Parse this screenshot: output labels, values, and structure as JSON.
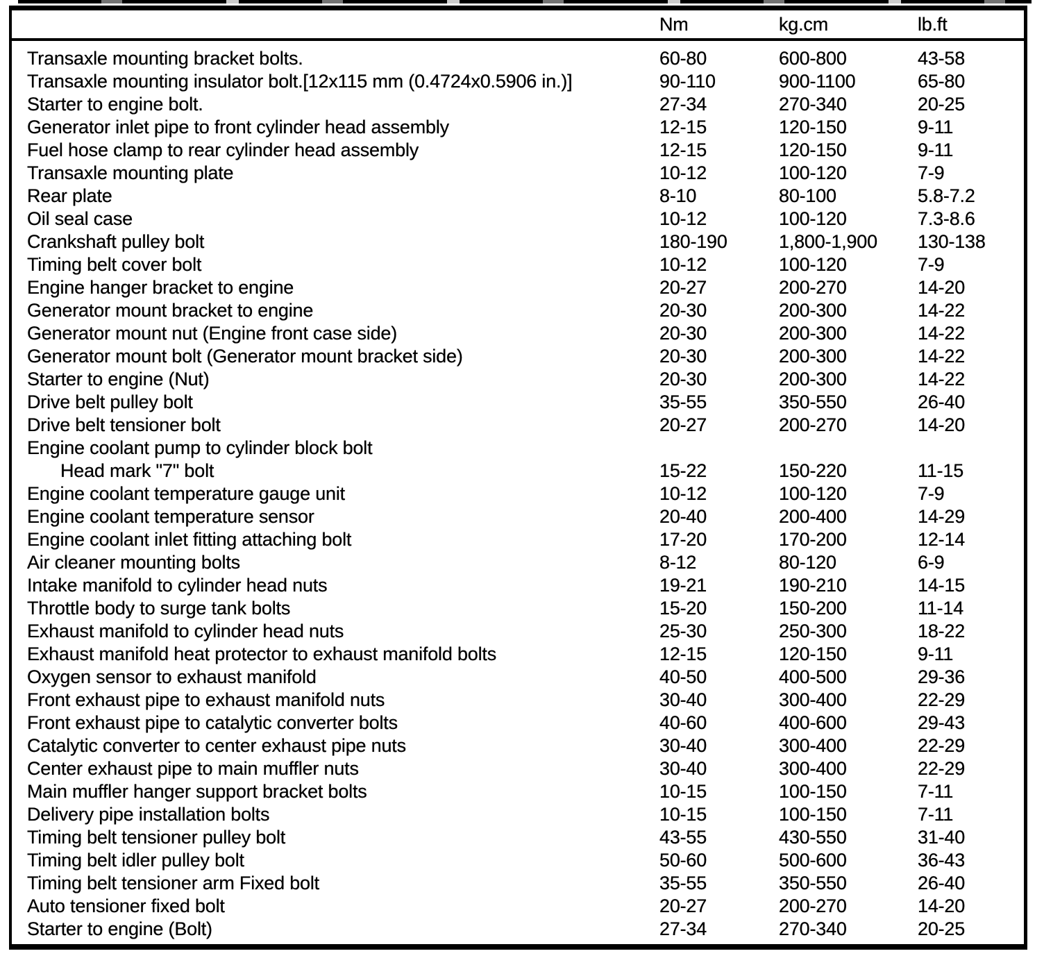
{
  "table": {
    "headers": {
      "nm": "Nm",
      "kgcm": "kg.cm",
      "lbft": "lb.ft"
    },
    "rows": [
      {
        "item": "Transaxle mounting bracket bolts.",
        "nm": "60-80",
        "kgcm": "600-800",
        "lbft": "43-58",
        "indent": false
      },
      {
        "item": "Transaxle mounting insulator bolt.[12x115 mm (0.4724x0.5906 in.)]",
        "nm": "90-110",
        "kgcm": "900-1100",
        "lbft": "65-80",
        "indent": false
      },
      {
        "item": "Starter to engine bolt.",
        "nm": "27-34",
        "kgcm": "270-340",
        "lbft": "20-25",
        "indent": false
      },
      {
        "item": "Generator inlet pipe to front cylinder head assembly",
        "nm": "12-15",
        "kgcm": "120-150",
        "lbft": "9-11",
        "indent": false
      },
      {
        "item": "Fuel hose clamp to rear cylinder head assembly",
        "nm": "12-15",
        "kgcm": "120-150",
        "lbft": "9-11",
        "indent": false
      },
      {
        "item": "Transaxle mounting plate",
        "nm": "10-12",
        "kgcm": "100-120",
        "lbft": "7-9",
        "indent": false
      },
      {
        "item": "Rear plate",
        "nm": "8-10",
        "kgcm": "80-100",
        "lbft": "5.8-7.2",
        "indent": false
      },
      {
        "item": "Oil seal case",
        "nm": "10-12",
        "kgcm": "100-120",
        "lbft": "7.3-8.6",
        "indent": false
      },
      {
        "item": "Crankshaft pulley bolt",
        "nm": "180-190",
        "kgcm": "1,800-1,900",
        "lbft": "130-138",
        "indent": false
      },
      {
        "item": "Timing belt cover bolt",
        "nm": "10-12",
        "kgcm": "100-120",
        "lbft": "7-9",
        "indent": false
      },
      {
        "item": "Engine hanger bracket to engine",
        "nm": "20-27",
        "kgcm": "200-270",
        "lbft": "14-20",
        "indent": false
      },
      {
        "item": "Generator mount bracket to engine",
        "nm": "20-30",
        "kgcm": "200-300",
        "lbft": "14-22",
        "indent": false
      },
      {
        "item": "Generator mount nut (Engine front case side)",
        "nm": "20-30",
        "kgcm": "200-300",
        "lbft": "14-22",
        "indent": false
      },
      {
        "item": "Generator mount bolt (Generator mount bracket side)",
        "nm": "20-30",
        "kgcm": "200-300",
        "lbft": "14-22",
        "indent": false
      },
      {
        "item": "Starter to engine (Nut)",
        "nm": "20-30",
        "kgcm": "200-300",
        "lbft": "14-22",
        "indent": false
      },
      {
        "item": "Drive belt pulley bolt",
        "nm": "35-55",
        "kgcm": "350-550",
        "lbft": "26-40",
        "indent": false
      },
      {
        "item": "Drive belt tensioner bolt",
        "nm": "20-27",
        "kgcm": "200-270",
        "lbft": "14-20",
        "indent": false
      },
      {
        "item": "Engine coolant pump to cylinder block bolt",
        "nm": "",
        "kgcm": "",
        "lbft": "",
        "indent": false
      },
      {
        "item": "Head mark \"7\" bolt",
        "nm": "15-22",
        "kgcm": "150-220",
        "lbft": "11-15",
        "indent": true
      },
      {
        "item": "Engine coolant temperature gauge unit",
        "nm": "10-12",
        "kgcm": "100-120",
        "lbft": "7-9",
        "indent": false
      },
      {
        "item": "Engine coolant temperature sensor",
        "nm": "20-40",
        "kgcm": "200-400",
        "lbft": "14-29",
        "indent": false
      },
      {
        "item": "Engine coolant inlet fitting attaching bolt",
        "nm": "17-20",
        "kgcm": "170-200",
        "lbft": "12-14",
        "indent": false
      },
      {
        "item": "Air cleaner mounting bolts",
        "nm": "8-12",
        "kgcm": "80-120",
        "lbft": "6-9",
        "indent": false
      },
      {
        "item": "Intake manifold to cylinder head nuts",
        "nm": "19-21",
        "kgcm": "190-210",
        "lbft": "14-15",
        "indent": false
      },
      {
        "item": "Throttle body to surge tank bolts",
        "nm": "15-20",
        "kgcm": "150-200",
        "lbft": "11-14",
        "indent": false
      },
      {
        "item": "Exhaust manifold to cylinder head nuts",
        "nm": "25-30",
        "kgcm": "250-300",
        "lbft": "18-22",
        "indent": false
      },
      {
        "item": "Exhaust manifold heat protector to exhaust manifold bolts",
        "nm": "12-15",
        "kgcm": "120-150",
        "lbft": "9-11",
        "indent": false
      },
      {
        "item": "Oxygen sensor to exhaust manifold",
        "nm": "40-50",
        "kgcm": "400-500",
        "lbft": "29-36",
        "indent": false
      },
      {
        "item": "Front exhaust pipe to exhaust manifold nuts",
        "nm": "30-40",
        "kgcm": "300-400",
        "lbft": "22-29",
        "indent": false
      },
      {
        "item": "Front exhaust pipe to catalytic converter bolts",
        "nm": "40-60",
        "kgcm": "400-600",
        "lbft": "29-43",
        "indent": false
      },
      {
        "item": "Catalytic converter to center exhaust pipe nuts",
        "nm": "30-40",
        "kgcm": "300-400",
        "lbft": "22-29",
        "indent": false
      },
      {
        "item": "Center exhaust pipe to main muffler nuts",
        "nm": "30-40",
        "kgcm": "300-400",
        "lbft": "22-29",
        "indent": false
      },
      {
        "item": "Main muffler hanger support bracket bolts",
        "nm": "10-15",
        "kgcm": "100-150",
        "lbft": "7-11",
        "indent": false
      },
      {
        "item": "Delivery pipe installation bolts",
        "nm": "10-15",
        "kgcm": "100-150",
        "lbft": "7-11",
        "indent": false
      },
      {
        "item": "Timing belt tensioner pulley bolt",
        "nm": "43-55",
        "kgcm": "430-550",
        "lbft": "31-40",
        "indent": false
      },
      {
        "item": "Timing belt idler pulley bolt",
        "nm": "50-60",
        "kgcm": "500-600",
        "lbft": "36-43",
        "indent": false
      },
      {
        "item": "Timing belt tensioner arm Fixed bolt",
        "nm": "35-55",
        "kgcm": "350-550",
        "lbft": "26-40",
        "indent": false
      },
      {
        "item": "Auto tensioner fixed bolt",
        "nm": "20-27",
        "kgcm": "200-270",
        "lbft": "14-20",
        "indent": false
      },
      {
        "item": "Starter to engine (Bolt)",
        "nm": "27-34",
        "kgcm": "270-340",
        "lbft": "20-25",
        "indent": false
      }
    ]
  }
}
